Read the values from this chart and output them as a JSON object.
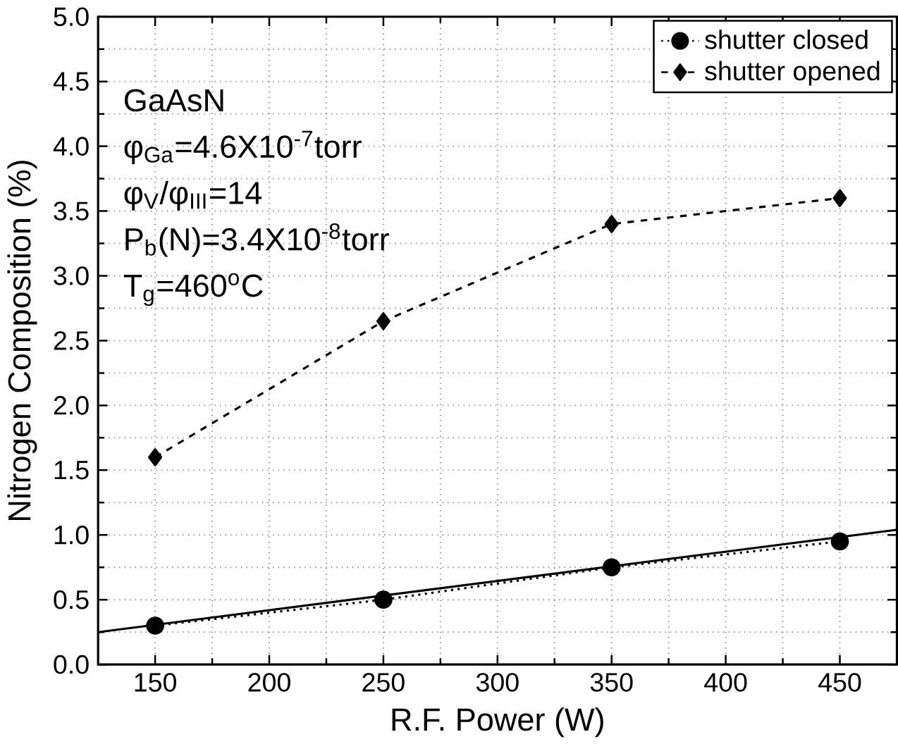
{
  "chart_data": {
    "type": "line",
    "xlabel": "R.F. Power (W)",
    "ylabel": "Nitrogen Composition (%)",
    "x": [
      150,
      250,
      350,
      450
    ],
    "series": [
      {
        "name": "shutter closed",
        "color": "#000000",
        "values": [
          0.3,
          0.5,
          0.75,
          0.95
        ],
        "marker": "circle",
        "line_style": "dotted"
      },
      {
        "name": "shutter opened",
        "color": "#000000",
        "values": [
          1.6,
          2.65,
          3.4,
          3.6
        ],
        "marker": "diamond",
        "line_style": "dashed"
      },
      {
        "color": "#000000",
        "x": [
          125,
          475
        ],
        "values": [
          0.25,
          1.04
        ],
        "marker": "none",
        "line_style": "solid"
      }
    ],
    "xlim": [
      125,
      475
    ],
    "ylim": [
      0,
      5
    ],
    "xticks": [
      150,
      200,
      250,
      300,
      350,
      400,
      450
    ],
    "yticks": [
      {
        "value": 0,
        "label": "0.0"
      },
      0.5,
      {
        "value": 1,
        "label": "1.0"
      },
      1.5,
      {
        "value": 2,
        "label": "2.0"
      },
      2.5,
      {
        "value": 3,
        "label": "3.0"
      },
      3.5,
      {
        "value": 4,
        "label": "4.0"
      },
      4.5,
      {
        "value": 5,
        "label": "5.0"
      }
    ],
    "grid": true,
    "legend": "top right",
    "annotations": [
      "GaAsN",
      "φ$_{Ga}$=4.6X10$^{-7}$torr",
      "φ$_{V}$/φ$_{III}$=14",
      "P$_{b}$(N)=3.4X10$^{-8}$torr",
      "T$_{g}$=460$^{o}$C"
    ]
  }
}
